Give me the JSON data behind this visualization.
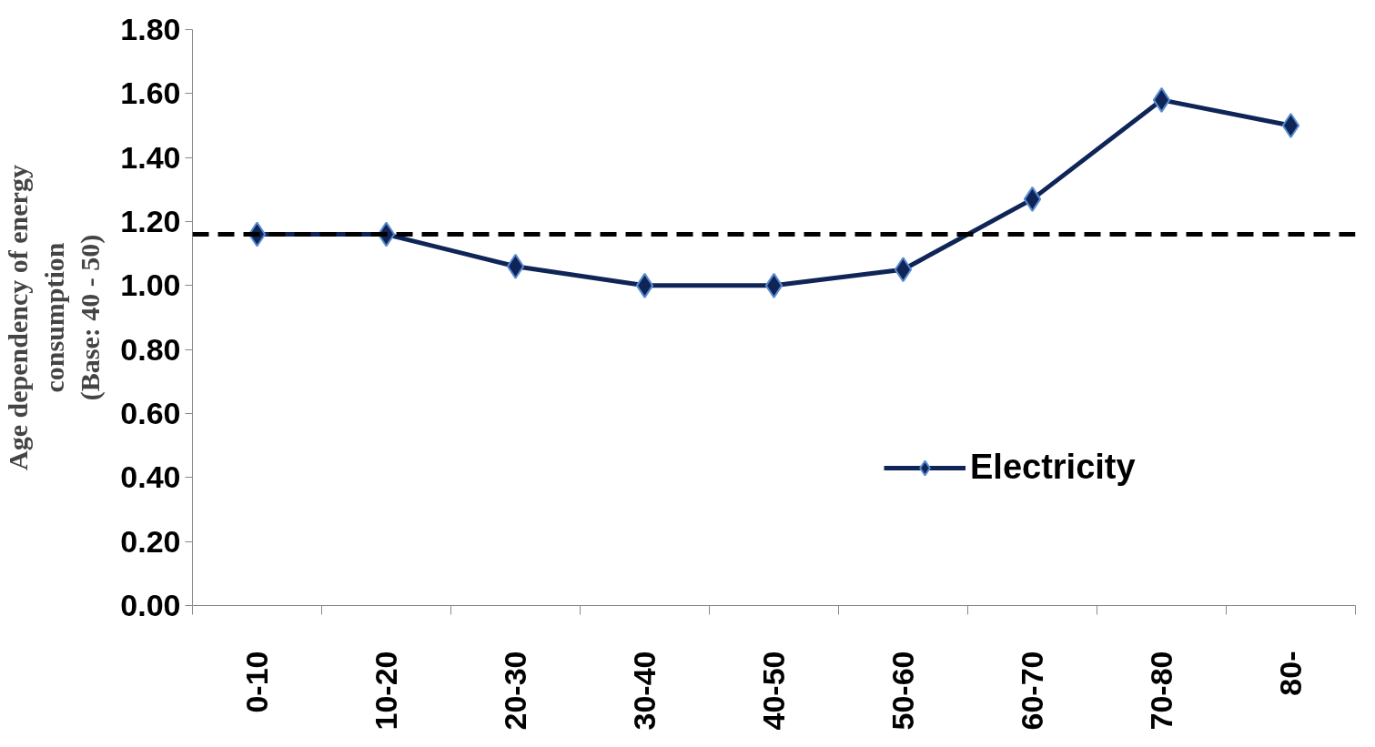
{
  "chart_data": {
    "type": "line",
    "ylabel": "Age dependency of energy\nconsumption\n(Base: 40 - 50)",
    "categories": [
      "0-10",
      "10-20",
      "20-30",
      "30-40",
      "40-50",
      "50-60",
      "60-70",
      "70-80",
      "80-"
    ],
    "series": [
      {
        "name": "Electricity",
        "color": "#0f2557",
        "values": [
          1.16,
          1.16,
          1.06,
          1.0,
          1.0,
          1.05,
          1.27,
          1.58,
          1.5
        ]
      }
    ],
    "ylim": [
      0,
      1.8
    ],
    "yticks": [
      {
        "value": 0,
        "label": "0.00"
      },
      {
        "value": 0.2,
        "label": "0.20"
      },
      {
        "value": 0.4,
        "label": "0.40"
      },
      {
        "value": 0.6,
        "label": "0.60"
      },
      {
        "value": 0.8,
        "label": "0.80"
      },
      {
        "value": 1.0,
        "label": "1.00"
      },
      {
        "value": 1.2,
        "label": "1.20"
      },
      {
        "value": 1.4,
        "label": "1.40"
      },
      {
        "value": 1.6,
        "label": "1.60"
      },
      {
        "value": 1.8,
        "label": "1.80"
      }
    ],
    "ref_lines": [
      {
        "axis": "y",
        "value": 1.16,
        "color": "#000000",
        "line_style": "dashed"
      }
    ],
    "marker": "diamond",
    "line_style": "solid",
    "grid": false,
    "legend": "right"
  }
}
